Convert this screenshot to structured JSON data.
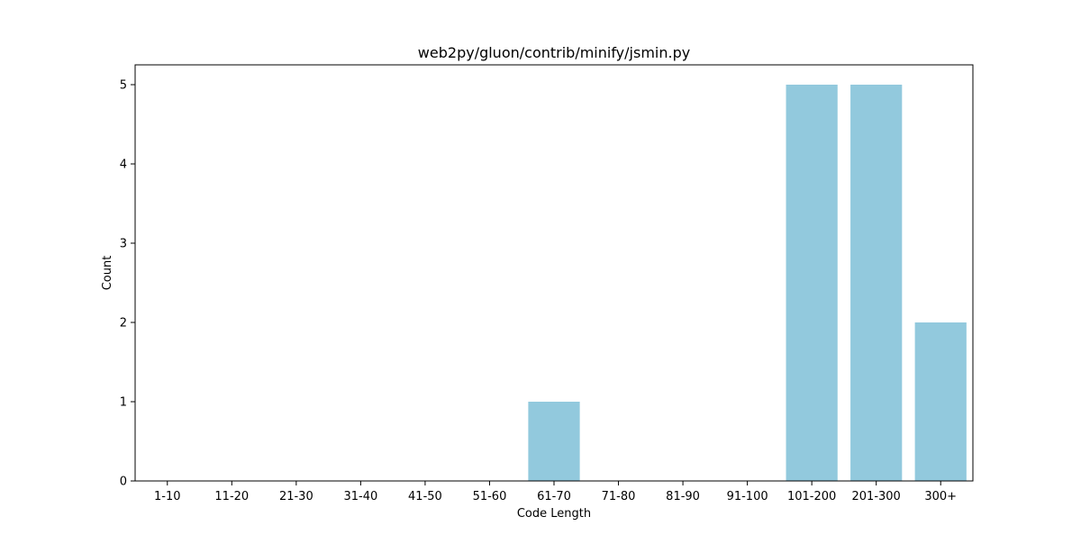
{
  "chart_data": {
    "type": "bar",
    "title": "web2py/gluon/contrib/minify/jsmin.py",
    "xlabel": "Code Length",
    "ylabel": "Count",
    "categories": [
      "1-10",
      "11-20",
      "21-30",
      "31-40",
      "41-50",
      "51-60",
      "61-70",
      "71-80",
      "81-90",
      "91-100",
      "101-200",
      "201-300",
      "300+"
    ],
    "values": [
      0,
      0,
      0,
      0,
      0,
      0,
      1,
      0,
      0,
      0,
      5,
      5,
      2
    ],
    "ylim": [
      0,
      5.25
    ],
    "yticks": [
      0,
      1,
      2,
      3,
      4,
      5
    ],
    "grid": false,
    "bar_color": "#92c9dd"
  }
}
